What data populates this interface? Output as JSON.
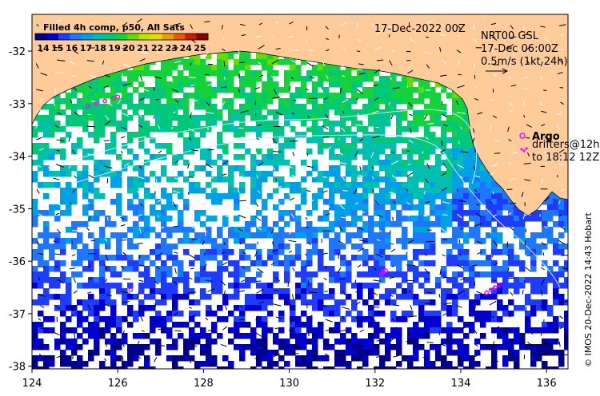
{
  "colors": {
    "land": "#ffcc99",
    "ocean_nodata": "#ffffff",
    "argo_marker": "#ff00ff",
    "current_arrows": "#000000"
  },
  "colorbar": {
    "title": "Filled 4h comp, p50, All Sats",
    "ticks": [
      "14",
      "15",
      "16",
      "17",
      "18",
      "19",
      "20",
      "21",
      "22",
      "23",
      "24",
      "25"
    ],
    "palette": [
      "#00008b",
      "#0000cd",
      "#1e3cff",
      "#1e78ff",
      "#00a0e6",
      "#00bfb0",
      "#00c878",
      "#14d23c",
      "#64dc00",
      "#b4e600",
      "#e6dc00",
      "#e6a000",
      "#e65a00",
      "#c81e00",
      "#8b0000"
    ]
  },
  "header": {
    "date": "17-Dec-2022 00Z",
    "product": "NRT00 GSL",
    "vector_time": "17-Dec 06:00Z",
    "vector_scale": "0.5m/s (1kt 24h)"
  },
  "legend": {
    "argo": "Argo",
    "drifters_line1": "drifters@12h",
    "drifters_line2": "to 18:12 12Z"
  },
  "credit": "© IMOS 20-Dec-2022 14:43 Hobart",
  "axes": {
    "x_ticks": [
      "124",
      "126",
      "128",
      "130",
      "132",
      "134",
      "136"
    ],
    "y_ticks": [
      "-32",
      "-33",
      "-34",
      "-35",
      "-36",
      "-37",
      "-38"
    ],
    "x_range": [
      124,
      136.5
    ],
    "y_range": [
      -38.05,
      -31.3
    ]
  },
  "argo_tracks": [
    {
      "lon": [
        125.3,
        125.5,
        125.7,
        125.9,
        126.0
      ],
      "lat": [
        -33.05,
        -33.0,
        -32.95,
        -32.9,
        -32.87
      ]
    },
    {
      "lon": [
        132.15,
        132.2,
        132.25
      ],
      "lat": [
        -36.25,
        -36.2,
        -36.18
      ]
    },
    {
      "lon": [
        134.6,
        134.7,
        134.8,
        134.9
      ],
      "lat": [
        -36.6,
        -36.55,
        -36.5,
        -36.45
      ]
    },
    {
      "lon": [
        126.3
      ],
      "lat": [
        -36.55
      ]
    }
  ]
}
